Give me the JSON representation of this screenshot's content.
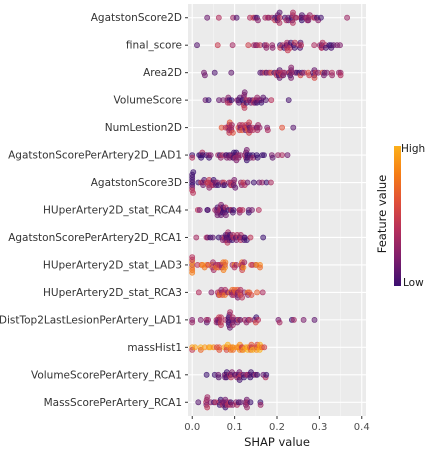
{
  "chart_data": {
    "type": "scatter",
    "subtype": "shap-beeswarm",
    "xlabel": "SHAP value",
    "xlim": [
      -0.01,
      0.41
    ],
    "x_ticks": [
      0.0,
      0.1,
      0.2,
      0.3,
      0.4
    ],
    "x_tick_labels": [
      "0.0",
      "0.1",
      "0.2",
      "0.3",
      "0.4"
    ],
    "grid": true,
    "background": "#ebebeb",
    "legend": {
      "title": "Feature value",
      "high_label": "High",
      "low_label": "Low",
      "placement": "right",
      "colors": [
        "#fcb01a",
        "#f57d15",
        "#e04f39",
        "#b52f5c",
        "#7e1e6c",
        "#3b0f70"
      ]
    },
    "features": [
      {
        "name": "AgatstonScore2D",
        "center": 0.22,
        "spread": 0.06,
        "min": 0.03,
        "max": 0.4,
        "mean_value": 0.2,
        "n": 48
      },
      {
        "name": "final_score",
        "center": 0.24,
        "spread": 0.06,
        "min": 0.0,
        "max": 0.35,
        "mean_value": 0.2,
        "n": 46
      },
      {
        "name": "Area2D",
        "center": 0.24,
        "spread": 0.06,
        "min": 0.0,
        "max": 0.35,
        "mean_value": 0.3,
        "n": 52
      },
      {
        "name": "VolumeScore",
        "center": 0.13,
        "spread": 0.03,
        "min": 0.03,
        "max": 0.24,
        "mean_value": 0.2,
        "n": 40
      },
      {
        "name": "NumLestion2D",
        "center": 0.12,
        "spread": 0.03,
        "min": 0.0,
        "max": 0.27,
        "mean_value": 0.35,
        "n": 40
      },
      {
        "name": "AgatstonScorePerArtery2D_LAD1",
        "center": 0.1,
        "spread": 0.06,
        "min": 0.0,
        "max": 0.24,
        "mean_value": 0.15,
        "n": 52
      },
      {
        "name": "AgatstonScore3D",
        "center": 0.05,
        "spread": 0.06,
        "min": 0.0,
        "max": 0.22,
        "mean_value": 0.2,
        "n": 50
      },
      {
        "name": "HUperArtery2D_stat_RCA4",
        "center": 0.09,
        "spread": 0.025,
        "min": 0.0,
        "max": 0.17,
        "mean_value": 0.15,
        "n": 34
      },
      {
        "name": "AgatstonScorePerArtery2D_RCA1",
        "center": 0.09,
        "spread": 0.025,
        "min": 0.0,
        "max": 0.19,
        "mean_value": 0.15,
        "n": 36
      },
      {
        "name": "HUperArtery2D_stat_LAD3",
        "center": 0.07,
        "spread": 0.05,
        "min": 0.0,
        "max": 0.16,
        "mean_value": 0.6,
        "n": 46
      },
      {
        "name": "HUperArtery2D_stat_RCA3",
        "center": 0.1,
        "spread": 0.03,
        "min": 0.0,
        "max": 0.17,
        "mean_value": 0.45,
        "n": 36
      },
      {
        "name": "DistTop2LastLesionPerArtery_LAD1",
        "center": 0.09,
        "spread": 0.05,
        "min": 0.0,
        "max": 0.29,
        "mean_value": 0.25,
        "n": 46
      },
      {
        "name": "massHist1",
        "center": 0.09,
        "spread": 0.045,
        "min": 0.0,
        "max": 0.17,
        "mean_value": 0.75,
        "n": 46
      },
      {
        "name": "VolumeScorePerArtery_RCA1",
        "center": 0.1,
        "spread": 0.025,
        "min": 0.0,
        "max": 0.18,
        "mean_value": 0.15,
        "n": 34
      },
      {
        "name": "MassScorePerArtery_RCA1",
        "center": 0.09,
        "spread": 0.03,
        "min": 0.0,
        "max": 0.17,
        "mean_value": 0.15,
        "n": 36
      }
    ]
  }
}
